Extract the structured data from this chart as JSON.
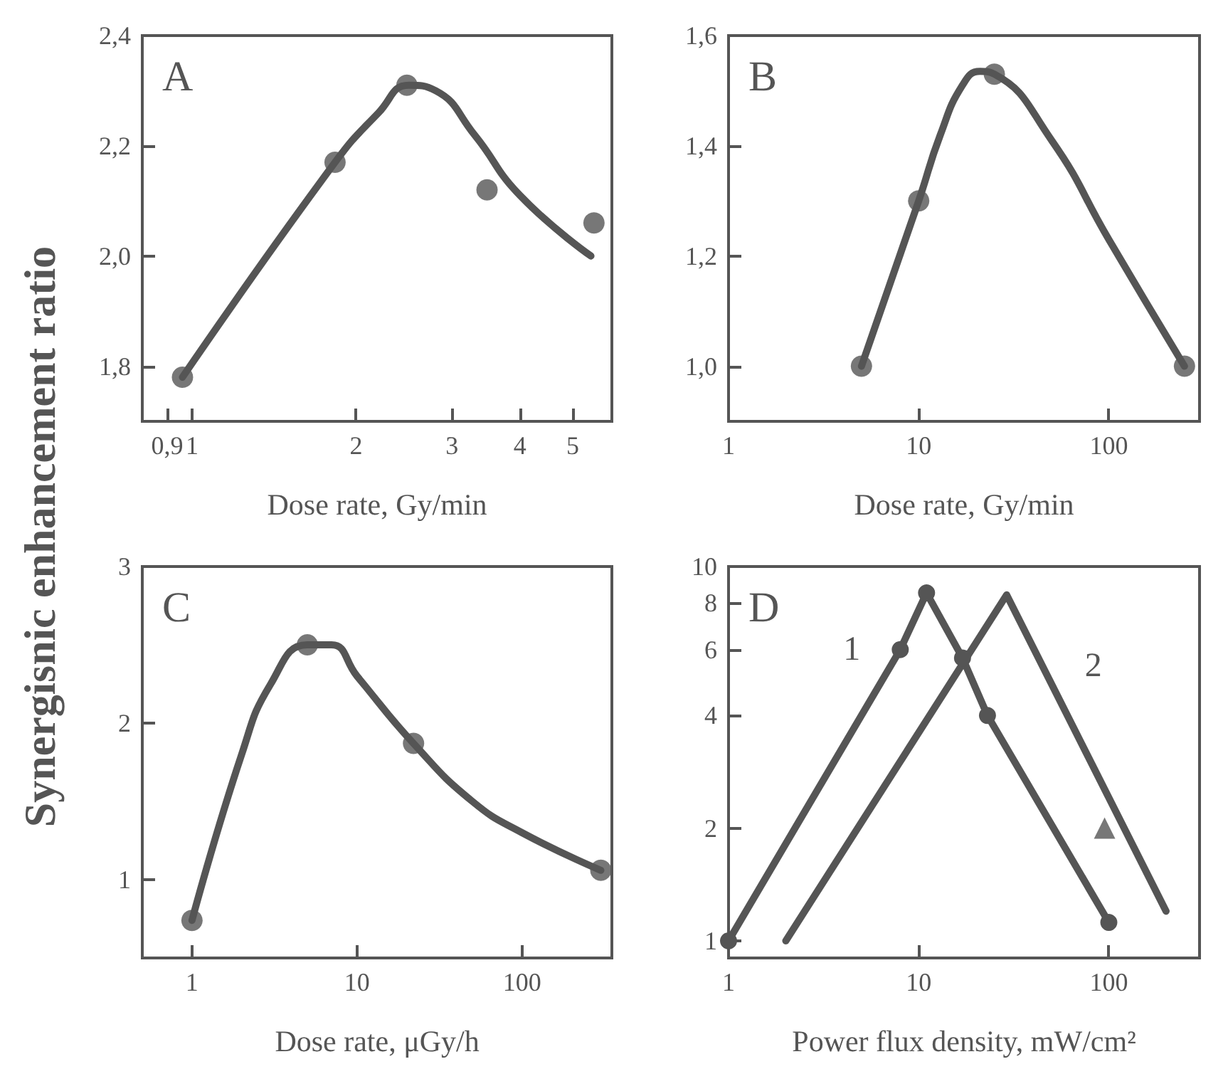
{
  "chart_data": [
    {
      "type": "line",
      "ylabel": "Synergisnic enhancement ratio",
      "xlabel": "Dose rate, Gy/min",
      "annotations": [
        "A"
      ],
      "log": "x",
      "xlim": [
        0.81,
        5.9
      ],
      "xticks": [
        {
          "value": 0.9,
          "label": "0,9"
        },
        1,
        2,
        3,
        4,
        5
      ],
      "ylim": [
        1.7,
        2.4
      ],
      "yticks": [
        {
          "value": 1.8,
          "label": "1,8"
        },
        {
          "value": 2.0,
          "label": "2,0"
        },
        {
          "value": 2.2,
          "label": "2,2"
        },
        {
          "value": 2.4,
          "label": "2,4"
        }
      ],
      "series": [
        {
          "color": "#555555",
          "x": [
            0.96,
            1.83,
            2.2,
            2.5,
            2.8,
            3.3,
            4.0,
            5.4
          ],
          "values": [
            1.78,
            2.17,
            2.26,
            2.31,
            2.3,
            2.22,
            2.11,
            2.0
          ]
        },
        {
          "type": "scatter",
          "marker": "circle",
          "color": "#555555",
          "x": [
            0.96,
            1.83,
            2.48,
            3.48,
            5.47
          ],
          "values": [
            1.78,
            2.17,
            2.31,
            2.12,
            2.06
          ]
        }
      ]
    },
    {
      "type": "line",
      "xlabel": "Dose rate, Gy/min",
      "annotations": [
        "B"
      ],
      "log": "x",
      "xlim": [
        1,
        300
      ],
      "xticks": [
        1,
        10,
        100
      ],
      "ylim": [
        0.9,
        1.6
      ],
      "yticks": [
        {
          "value": 1.0,
          "label": "1,0"
        },
        {
          "value": 1.2,
          "label": "1,2"
        },
        {
          "value": 1.4,
          "label": "1,4"
        },
        {
          "value": 1.6,
          "label": "1,6"
        }
      ],
      "series": [
        {
          "color": "#555555",
          "x": [
            5,
            10,
            13,
            17,
            21,
            25,
            50,
            100,
            250
          ],
          "values": [
            1.0,
            1.3,
            1.42,
            1.51,
            1.535,
            1.53,
            1.41,
            1.23,
            1.0
          ]
        },
        {
          "type": "scatter",
          "marker": "circle",
          "color": "#555555",
          "x": [
            5,
            10,
            25,
            250
          ],
          "values": [
            1.0,
            1.3,
            1.53,
            1.0
          ]
        }
      ]
    },
    {
      "type": "line",
      "xlabel": "Dose rate, μGy/h",
      "annotations": [
        "C"
      ],
      "log": "x",
      "xlim": [
        0.5,
        350
      ],
      "xticks": [
        1,
        10,
        100
      ],
      "ylim": [
        0.5,
        3
      ],
      "yticks": [
        1,
        2,
        3
      ],
      "series": [
        {
          "color": "#555555",
          "x": [
            1,
            2,
            3,
            5,
            7,
            10,
            22,
            50,
            100,
            300
          ],
          "values": [
            0.74,
            1.8,
            2.25,
            2.5,
            2.5,
            2.3,
            1.87,
            1.5,
            1.3,
            1.06
          ]
        },
        {
          "type": "scatter",
          "marker": "circle",
          "color": "#555555",
          "x": [
            1,
            5,
            22,
            300
          ],
          "values": [
            0.74,
            2.5,
            1.87,
            1.06
          ]
        }
      ]
    },
    {
      "type": "line",
      "xlabel": "Power flux density, mW/cm²",
      "annotations": [
        "D"
      ],
      "log": "xy",
      "xlim": [
        1,
        300
      ],
      "xticks": [
        1,
        10,
        100
      ],
      "ylim": [
        0.9,
        10
      ],
      "yticks": [
        1,
        2,
        4,
        6,
        8,
        10
      ],
      "series": [
        {
          "name": "1",
          "marker": "circle",
          "color": "#555555",
          "x": [
            1,
            8,
            11,
            17,
            23,
            100
          ],
          "values": [
            1,
            6,
            8.5,
            5.7,
            4,
            1.12
          ]
        },
        {
          "name": "2",
          "color": "#555555",
          "x": [
            2,
            29,
            200
          ],
          "values": [
            1,
            8.4,
            1.2
          ]
        },
        {
          "type": "scatter",
          "marker": "triangle",
          "color": "#555555",
          "x": [
            95
          ],
          "values": [
            2
          ]
        }
      ]
    }
  ]
}
